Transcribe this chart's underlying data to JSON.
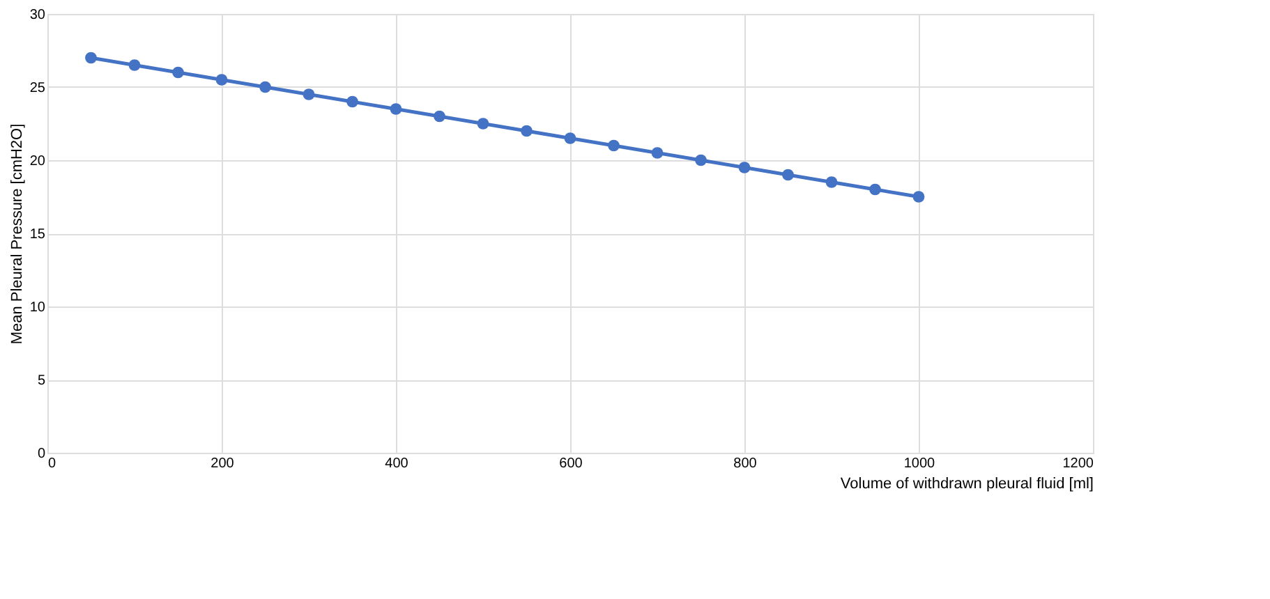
{
  "chart_data": {
    "type": "line",
    "xlabel": "Volume of withdrawn pleural fluid [ml]",
    "ylabel": "Mean Pleural Pressure [cmH2O]",
    "x": [
      50,
      100,
      150,
      200,
      250,
      300,
      350,
      400,
      450,
      500,
      550,
      600,
      650,
      700,
      750,
      800,
      850,
      900,
      950,
      1000
    ],
    "series": [
      {
        "color": "#4472c4",
        "values": [
          27,
          26.5,
          26,
          25.5,
          25,
          24.5,
          24,
          23.5,
          23,
          22.5,
          22,
          21.5,
          21,
          20.5,
          20,
          19.5,
          19,
          18.5,
          18,
          17.5
        ]
      }
    ],
    "xlim": [
      0,
      1200
    ],
    "xticks": [
      0,
      200,
      400,
      600,
      800,
      1000,
      1200
    ],
    "ylim": [
      0,
      30
    ],
    "yticks": [
      0,
      5,
      10,
      15,
      20,
      25,
      30
    ],
    "grid": true,
    "marker": "circle",
    "line_style": "solid"
  }
}
